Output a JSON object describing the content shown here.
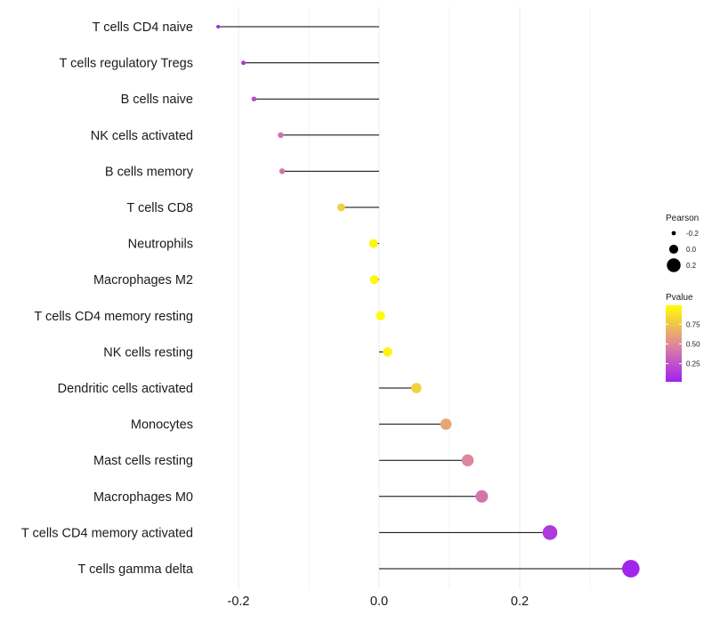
{
  "chart_data": {
    "type": "lollipop",
    "orientation": "horizontal",
    "title": "",
    "xlabel": "",
    "ylabel": "",
    "xlim": [
      -0.3,
      0.37
    ],
    "xticks": [
      -0.2,
      0.0,
      0.2
    ],
    "xtick_labels": [
      "-0.2",
      "0.0",
      "0.2"
    ],
    "grid": true,
    "categories": [
      "T cells CD4 naive",
      "T cells regulatory  Tregs",
      "B cells naive",
      "NK cells activated",
      "B cells memory",
      "T cells CD8",
      "Neutrophils",
      "Macrophages M2",
      "T cells CD4 memory resting",
      "NK cells resting",
      "Dendritic cells activated",
      "Monocytes",
      "Mast cells resting",
      "Macrophages M0",
      "T cells CD4 memory activated",
      "T cells gamma delta"
    ],
    "pearson": [
      -0.229,
      -0.193,
      -0.178,
      -0.14,
      -0.138,
      -0.054,
      -0.008,
      -0.007,
      0.002,
      0.012,
      0.053,
      0.095,
      0.126,
      0.146,
      0.243,
      0.358
    ],
    "pvalue": [
      0.03,
      0.12,
      0.18,
      0.38,
      0.4,
      0.8,
      0.97,
      0.97,
      0.99,
      0.95,
      0.8,
      0.62,
      0.48,
      0.4,
      0.12,
      0.02
    ],
    "legend": {
      "position": "right",
      "size_title": "Pearson",
      "size_labels": [
        "-0.2",
        "0.0",
        "0.2"
      ],
      "size_values": [
        -0.2,
        0.0,
        0.2
      ],
      "color_title": "Pvalue",
      "color_labels": [
        "0.75",
        "0.50",
        "0.25"
      ],
      "color_values": [
        0.75,
        0.5,
        0.25
      ],
      "color_low": "#a020f0",
      "color_high": "#ffff00"
    }
  }
}
